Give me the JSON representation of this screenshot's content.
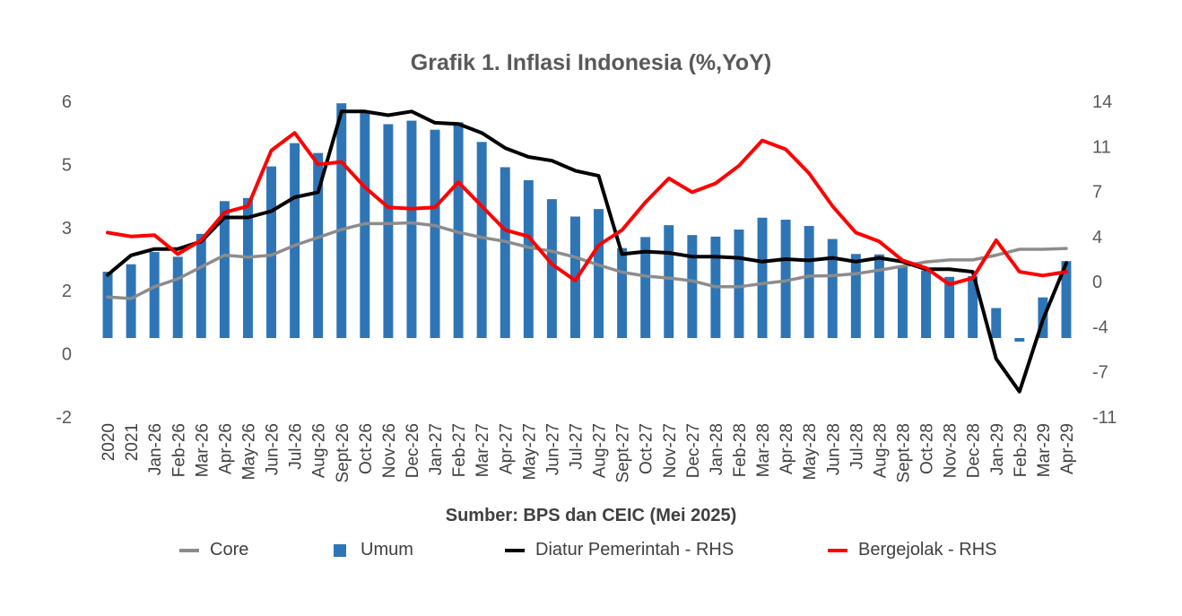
{
  "chart_data": {
    "type": "bar",
    "title": "Grafik 1. Inflasi Indonesia (%,YoY)",
    "source": "Sumber: BPS dan CEIC (Mei 2025)",
    "categories": [
      "2020",
      "2021",
      "Jan-26",
      "Feb-26",
      "Mar-26",
      "Apr-26",
      "May-26",
      "Jun-26",
      "Jul-26",
      "Aug-26",
      "Sept-26",
      "Oct-26",
      "Nov-26",
      "Dec-26",
      "Jan-27",
      "Feb-27",
      "Mar-27",
      "Apr-27",
      "May-27",
      "Jun-27",
      "Jul-27",
      "Aug-27",
      "Sept-27",
      "Oct-27",
      "Nov-27",
      "Dec-27",
      "Jan-28",
      "Feb-28",
      "Mar-28",
      "Apr-28",
      "May-28",
      "Jun-28",
      "Jul-28",
      "Aug-28",
      "Sept-28",
      "Oct-28",
      "Nov-28",
      "Dec-28",
      "Jan-29",
      "Feb-29",
      "Mar-29",
      "Apr-29"
    ],
    "y_left": {
      "ticks": [
        "6",
        "5",
        "3",
        "2",
        "0",
        "-2"
      ],
      "min": -2,
      "max": 6
    },
    "y_right": {
      "ticks": [
        "14",
        "11",
        "7",
        "4",
        "0",
        "-4",
        "-7",
        "-11"
      ],
      "min": -11,
      "max": 14
    },
    "series": [
      {
        "name": "Core",
        "type": "line",
        "axis": "left",
        "color": "#8c8c8c",
        "values": [
          1.04,
          1.0,
          1.3,
          1.5,
          1.8,
          2.1,
          2.05,
          2.1,
          2.35,
          2.55,
          2.75,
          2.9,
          2.9,
          2.92,
          2.85,
          2.68,
          2.55,
          2.45,
          2.3,
          2.2,
          2.05,
          1.85,
          1.67,
          1.57,
          1.52,
          1.45,
          1.3,
          1.3,
          1.38,
          1.45,
          1.57,
          1.58,
          1.63,
          1.72,
          1.82,
          1.93,
          1.98,
          1.98,
          2.1,
          2.25,
          2.25,
          2.27
        ]
      },
      {
        "name": "Umum",
        "type": "bar",
        "axis": "left",
        "color": "#2e75b6",
        "values": [
          1.68,
          1.87,
          2.18,
          2.06,
          2.64,
          3.47,
          3.55,
          4.35,
          4.94,
          4.69,
          5.95,
          5.71,
          5.42,
          5.51,
          5.28,
          5.47,
          4.97,
          4.33,
          4.0,
          3.52,
          3.08,
          3.27,
          2.28,
          2.56,
          2.86,
          2.61,
          2.57,
          2.75,
          3.05,
          3.0,
          2.84,
          2.51,
          2.13,
          2.12,
          1.84,
          1.71,
          1.55,
          1.57,
          0.76,
          -0.09,
          1.03,
          1.95
        ]
      },
      {
        "name": "Diatur Pemerintah - RHS",
        "type": "line",
        "axis": "right",
        "color": "#000000",
        "values": [
          0.25,
          1.8,
          2.3,
          2.3,
          2.9,
          4.8,
          4.8,
          5.3,
          6.4,
          6.8,
          13.2,
          13.2,
          12.9,
          13.2,
          12.3,
          12.2,
          11.5,
          10.3,
          9.6,
          9.3,
          8.5,
          8.1,
          1.9,
          2.1,
          2.0,
          1.7,
          1.7,
          1.6,
          1.3,
          1.5,
          1.4,
          1.6,
          1.3,
          1.6,
          1.3,
          0.7,
          0.7,
          0.5,
          -6.4,
          -9.0,
          -3.3,
          1.2
        ]
      },
      {
        "name": "Bergejolak - RHS",
        "type": "line",
        "axis": "right",
        "color": "#ff0000",
        "values": [
          3.6,
          3.3,
          3.4,
          1.9,
          3.0,
          5.2,
          5.7,
          10.1,
          11.5,
          9.0,
          9.2,
          7.2,
          5.6,
          5.5,
          5.6,
          7.6,
          5.7,
          3.8,
          3.3,
          1.1,
          -0.2,
          2.6,
          3.8,
          6.0,
          7.9,
          6.8,
          7.5,
          8.9,
          10.9,
          10.2,
          8.3,
          5.7,
          3.6,
          2.9,
          1.4,
          0.8,
          -0.5,
          0.0,
          3.0,
          0.5,
          0.2,
          0.5
        ]
      }
    ],
    "legend": "bottom",
    "grid": false
  }
}
